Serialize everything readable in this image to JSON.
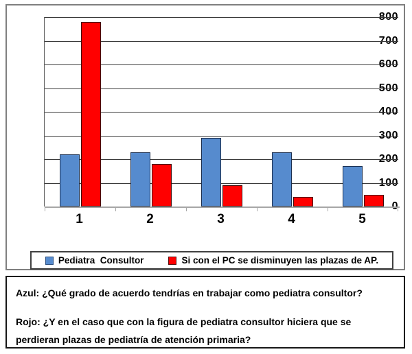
{
  "chart_data": {
    "type": "bar",
    "title": "",
    "xlabel": "",
    "ylabel": "",
    "categories": [
      "1",
      "2",
      "3",
      "4",
      "5"
    ],
    "series": [
      {
        "name": "Pediatra  Consultor",
        "color": "#568bce",
        "border_color": "#1c2f4e",
        "values": [
          220,
          230,
          290,
          230,
          170
        ]
      },
      {
        "name": "Si con el PC se disminuyen las plazas de AP.",
        "color": "#ff0000",
        "border_color": "#3d0a0a",
        "values": [
          780,
          180,
          90,
          40,
          50
        ]
      }
    ],
    "ylim": [
      0,
      800
    ],
    "ytick_step": 100,
    "yticks": [
      0,
      100,
      200,
      300,
      400,
      500,
      600,
      700,
      800
    ],
    "grid": true,
    "legend_position": "bottom"
  },
  "legend": {
    "items": [
      {
        "label": "Pediatra  Consultor",
        "swatch_color": "#568bce"
      },
      {
        "label": "Si con el PC se disminuyen las plazas de AP.",
        "swatch_color": "#ff0000"
      }
    ]
  },
  "caption_box": {
    "azul_line": "Azul: ¿Qué grado de acuerdo tendrías en trabajar como pediatra consultor?",
    "rojo_line": "Rojo: ¿Y en el caso que con la figura de pediatra consultor hiciera que se perdieran plazas de pediatría de atención primaria?"
  },
  "colors": {
    "chart_border": "#7f7f7f",
    "gridline": "#3a3a3a",
    "axis_line": "#a6a6a6",
    "legend_border": "#404040",
    "caption_border": "#161616"
  }
}
